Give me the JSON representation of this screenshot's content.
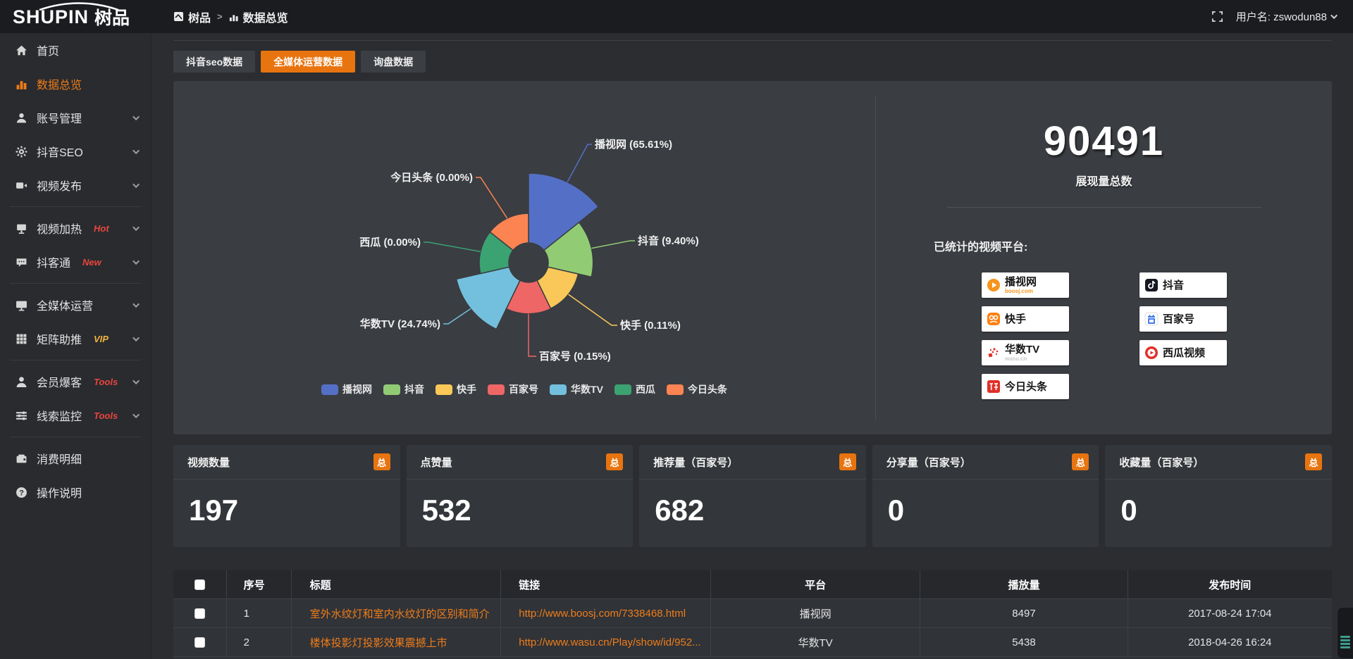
{
  "header": {
    "logo_en": "SHUPIN",
    "logo_cn": "树品",
    "breadcrumb": {
      "root": "树品",
      "separator": ">",
      "current": "数据总览"
    },
    "username": "用户名: zswodun88"
  },
  "sidebar": {
    "items": [
      {
        "label": "首页",
        "icon": "home",
        "badge": "",
        "badge_color": "",
        "chevron": false,
        "active": false,
        "divider_after": false
      },
      {
        "label": "数据总览",
        "icon": "bar-chart",
        "badge": "",
        "badge_color": "",
        "chevron": false,
        "active": true,
        "divider_after": false
      },
      {
        "label": "账号管理",
        "icon": "user",
        "badge": "",
        "badge_color": "",
        "chevron": true,
        "active": false,
        "divider_after": false
      },
      {
        "label": "抖音SEO",
        "icon": "gear",
        "badge": "",
        "badge_color": "",
        "chevron": true,
        "active": false,
        "divider_after": false
      },
      {
        "label": "视频发布",
        "icon": "video",
        "badge": "",
        "badge_color": "",
        "chevron": true,
        "active": false,
        "divider_after": true
      },
      {
        "label": "视频加热",
        "icon": "heat",
        "badge": "Hot",
        "badge_color": "#e8453c",
        "chevron": true,
        "active": false,
        "divider_after": false
      },
      {
        "label": "抖客通",
        "icon": "chat",
        "badge": "New",
        "badge_color": "#e8453c",
        "chevron": true,
        "active": false,
        "divider_after": true
      },
      {
        "label": "全媒体运营",
        "icon": "monitor",
        "badge": "",
        "badge_color": "",
        "chevron": true,
        "active": false,
        "divider_after": false
      },
      {
        "label": "矩阵助推",
        "icon": "grid",
        "badge": "VIP",
        "badge_color": "#f3b33f",
        "chevron": true,
        "active": false,
        "divider_after": true
      },
      {
        "label": "会员爆客",
        "icon": "member",
        "badge": "Tools",
        "badge_color": "#e8453c",
        "chevron": true,
        "active": false,
        "divider_after": false
      },
      {
        "label": "线索监控",
        "icon": "sliders",
        "badge": "Tools",
        "badge_color": "#e8453c",
        "chevron": true,
        "active": false,
        "divider_after": true
      },
      {
        "label": "消费明细",
        "icon": "wallet",
        "badge": "",
        "badge_color": "",
        "chevron": false,
        "active": false,
        "divider_after": false
      },
      {
        "label": "操作说明",
        "icon": "question",
        "badge": "",
        "badge_color": "",
        "chevron": false,
        "active": false,
        "divider_after": false
      }
    ]
  },
  "tabs": [
    {
      "label": "抖音seo数据",
      "active": false
    },
    {
      "label": "全媒体运营数据",
      "active": true
    },
    {
      "label": "询盘数据",
      "active": false
    }
  ],
  "chart_data": {
    "type": "pie",
    "variant": "nightingale-rose",
    "labels": [
      "播视网",
      "抖音",
      "快手",
      "百家号",
      "华数TV",
      "西瓜",
      "今日头条"
    ],
    "percentages": [
      65.61,
      9.4,
      0.11,
      0.15,
      24.74,
      0.0,
      0.0
    ],
    "label_texts": [
      "播视网 (65.61%)",
      "抖音 (9.40%)",
      "快手 (0.11%)",
      "百家号 (0.15%)",
      "华数TV (24.74%)",
      "西瓜 (0.00%)",
      "今日头条 (0.00%)"
    ],
    "colors": [
      "#5470c6",
      "#91cc75",
      "#fac858",
      "#ee6666",
      "#73c0de",
      "#3ba272",
      "#fc8452"
    ],
    "legend": [
      "播视网",
      "抖音",
      "快手",
      "百家号",
      "华数TV",
      "西瓜",
      "今日头条"
    ],
    "legend_position": "bottom",
    "total": 90491
  },
  "summary": {
    "total_value": "90491",
    "total_label": "展现量总数",
    "platforms_label": "已统计的视频平台:",
    "platforms": [
      {
        "name": "播视网",
        "sub": "boosj.com",
        "sub_color": "#f7941d",
        "icon": "boosj"
      },
      {
        "name": "抖音",
        "sub": "",
        "sub_color": "",
        "icon": "douyin"
      },
      {
        "name": "快手",
        "sub": "",
        "sub_color": "",
        "icon": "kuaishou"
      },
      {
        "name": "百家号",
        "sub": "",
        "sub_color": "",
        "icon": "baijia"
      },
      {
        "name": "华数TV",
        "sub": "wasu.cn",
        "sub_color": "#c9c9c9",
        "icon": "wasu"
      },
      {
        "name": "西瓜视频",
        "sub": "",
        "sub_color": "",
        "icon": "xigua"
      },
      {
        "name": "今日头条",
        "sub": "",
        "sub_color": "",
        "icon": "toutiao"
      }
    ]
  },
  "stat_cards": [
    {
      "label": "视频数量",
      "badge": "总",
      "value": "197"
    },
    {
      "label": "点赞量",
      "badge": "总",
      "value": "532"
    },
    {
      "label": "推荐量（百家号）",
      "badge": "总",
      "value": "682"
    },
    {
      "label": "分享量（百家号）",
      "badge": "总",
      "value": "0"
    },
    {
      "label": "收藏量（百家号）",
      "badge": "总",
      "value": "0"
    }
  ],
  "table": {
    "columns": [
      "序号",
      "标题",
      "链接",
      "平台",
      "播放量",
      "发布时间"
    ],
    "rows": [
      {
        "index": "1",
        "title": "室外水纹灯和室内水纹灯的区别和简介",
        "link": "http://www.boosj.com/7338468.html",
        "platform": "播视网",
        "plays": "8497",
        "published": "2017-08-24 17:04"
      },
      {
        "index": "2",
        "title": "楼体投影灯投影效果震撼上市",
        "link": "http://www.wasu.cn/Play/show/id/952...",
        "platform": "华数TV",
        "plays": "5438",
        "published": "2018-04-26 16:24"
      }
    ]
  }
}
